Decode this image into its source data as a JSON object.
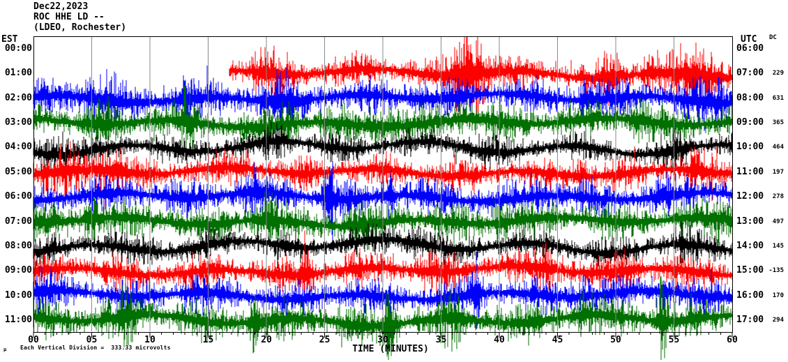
{
  "chart_data": {
    "type": "helicorder",
    "title": "Dec22,2023",
    "station": "ROC HHE LD --",
    "location": "(LDEO, Rochester)",
    "left_axis_label": "EST",
    "right_axis_label": "UTC",
    "dc_header": "DC",
    "xlabel": "TIME (MINUTES)",
    "x_range_minutes": [
      0,
      60
    ],
    "x_tick_step_minutes": 5,
    "x_tick_labels": [
      "00",
      "05",
      "10",
      "15",
      "20",
      "25",
      "30",
      "35",
      "40",
      "45",
      "50",
      "55",
      "60"
    ],
    "gridline_minutes": [
      5,
      10,
      15,
      20,
      25,
      30,
      35,
      40,
      45,
      50,
      55
    ],
    "footnote": "Each Vertical Division =  333.33 microvolts",
    "footnote_mark": "μ",
    "microvolts_per_division": 333.33,
    "colors": {
      "red": "#ff0000",
      "blue": "#0000ff",
      "green": "#007000",
      "black": "#000000",
      "grid": "#8a8a8a",
      "border": "#000000"
    },
    "random_seed": 122223,
    "rows": [
      {
        "est": "00:00",
        "utc": "06:00",
        "dc": "",
        "color": null,
        "has_data": false,
        "start_min": 0,
        "end_min": 0,
        "base_amp": 0,
        "wander": 0,
        "events": []
      },
      {
        "est": "01:00",
        "utc": "07:00",
        "dc": "229",
        "color": "red",
        "has_data": true,
        "start_min": 16.8,
        "end_min": 60,
        "base_amp": 15,
        "wander": 4,
        "events": [
          {
            "m": 20.5,
            "a": 12,
            "w": 1.5
          },
          {
            "m": 37.4,
            "a": 40,
            "w": 1.4
          },
          {
            "m": 49.5,
            "a": 16,
            "w": 0.8
          },
          {
            "m": 53,
            "a": 10,
            "w": 0.8
          },
          {
            "m": 57,
            "a": 16,
            "w": 2.2
          }
        ]
      },
      {
        "est": "02:00",
        "utc": "08:00",
        "dc": "631",
        "color": "blue",
        "has_data": true,
        "start_min": 0,
        "end_min": 60,
        "base_amp": 17,
        "wander": 4,
        "events": [
          {
            "m": 5.8,
            "a": 14,
            "w": 1.8
          },
          {
            "m": 13,
            "a": 9,
            "w": 0.8
          },
          {
            "m": 21,
            "a": 13,
            "w": 1.6
          },
          {
            "m": 33,
            "a": 7,
            "w": 1
          },
          {
            "m": 47.8,
            "a": 11,
            "w": 0.9
          },
          {
            "m": 58.5,
            "a": 11,
            "w": 1.5
          }
        ]
      },
      {
        "est": "03:00",
        "utc": "09:00",
        "dc": "365",
        "color": "green",
        "has_data": true,
        "start_min": 0,
        "end_min": 60,
        "base_amp": 17,
        "wander": 4,
        "events": [
          {
            "m": 6,
            "a": 9,
            "w": 1
          },
          {
            "m": 13.2,
            "a": 15,
            "w": 0.7
          },
          {
            "m": 22,
            "a": 9,
            "w": 1
          },
          {
            "m": 30,
            "a": 11,
            "w": 1.2
          },
          {
            "m": 37,
            "a": 9,
            "w": 0.8
          },
          {
            "m": 52,
            "a": 9,
            "w": 0.8
          }
        ]
      },
      {
        "est": "04:00",
        "utc": "10:00",
        "dc": "464",
        "color": "black",
        "has_data": true,
        "start_min": 0,
        "end_min": 60,
        "base_amp": 13,
        "wander": 6,
        "events": [
          {
            "m": 2,
            "a": 9,
            "w": 1.5
          },
          {
            "m": 21,
            "a": 7,
            "w": 1
          },
          {
            "m": 38,
            "a": 6,
            "w": 2
          },
          {
            "m": 55,
            "a": 7,
            "w": 1.2
          }
        ]
      },
      {
        "est": "05:00",
        "utc": "11:00",
        "dc": "197",
        "color": "red",
        "has_data": true,
        "start_min": 0,
        "end_min": 60,
        "base_amp": 15,
        "wander": 4,
        "events": [
          {
            "m": 3,
            "a": 13,
            "w": 1.2
          },
          {
            "m": 6.5,
            "a": 15,
            "w": 1.5
          },
          {
            "m": 18,
            "a": 7,
            "w": 1
          },
          {
            "m": 47,
            "a": 9,
            "w": 1
          },
          {
            "m": 57,
            "a": 9,
            "w": 1
          }
        ]
      },
      {
        "est": "06:00",
        "utc": "12:00",
        "dc": "278",
        "color": "blue",
        "has_data": true,
        "start_min": 0,
        "end_min": 60,
        "base_amp": 17,
        "wander": 4,
        "events": [
          {
            "m": 19,
            "a": 9,
            "w": 1.2
          },
          {
            "m": 25.6,
            "a": 28,
            "w": 0.5
          },
          {
            "m": 30.6,
            "a": 18,
            "w": 0.5
          },
          {
            "m": 44,
            "a": 7,
            "w": 1
          },
          {
            "m": 54,
            "a": 9,
            "w": 0.8
          }
        ]
      },
      {
        "est": "07:00",
        "utc": "13:00",
        "dc": "497",
        "color": "green",
        "has_data": true,
        "start_min": 0,
        "end_min": 60,
        "base_amp": 17,
        "wander": 4,
        "events": [
          {
            "m": 5,
            "a": 13,
            "w": 0.8
          },
          {
            "m": 20,
            "a": 13,
            "w": 0.9
          },
          {
            "m": 28,
            "a": 7,
            "w": 1
          },
          {
            "m": 40,
            "a": 9,
            "w": 0.9
          },
          {
            "m": 59,
            "a": 11,
            "w": 0.8
          }
        ]
      },
      {
        "est": "08:00",
        "utc": "14:00",
        "dc": "145",
        "color": "black",
        "has_data": true,
        "start_min": 0,
        "end_min": 60,
        "base_amp": 14,
        "wander": 6,
        "events": [
          {
            "m": 10,
            "a": 5,
            "w": 1
          },
          {
            "m": 33,
            "a": 7,
            "w": 1.2
          },
          {
            "m": 56,
            "a": 9,
            "w": 0.9
          }
        ]
      },
      {
        "est": "09:00",
        "utc": "15:00",
        "dc": "-135",
        "color": "red",
        "has_data": true,
        "start_min": 0,
        "end_min": 60,
        "base_amp": 16,
        "wander": 4,
        "events": [
          {
            "m": 23.4,
            "a": 26,
            "w": 0.5
          },
          {
            "m": 34,
            "a": 9,
            "w": 1
          },
          {
            "m": 44,
            "a": 11,
            "w": 1
          },
          {
            "m": 51,
            "a": 9,
            "w": 0.8
          }
        ]
      },
      {
        "est": "10:00",
        "utc": "16:00",
        "dc": "170",
        "color": "blue",
        "has_data": true,
        "start_min": 0,
        "end_min": 60,
        "base_amp": 16,
        "wander": 4,
        "events": [
          {
            "m": 0.7,
            "a": 11,
            "w": 0.9
          },
          {
            "m": 14,
            "a": 7,
            "w": 1
          },
          {
            "m": 38,
            "a": 24,
            "w": 0.5
          },
          {
            "m": 47.5,
            "a": 9,
            "w": 0.8
          },
          {
            "m": 54,
            "a": 13,
            "w": 0.7
          }
        ]
      },
      {
        "est": "11:00",
        "utc": "17:00",
        "dc": "294",
        "color": "green",
        "has_data": true,
        "start_min": 0,
        "end_min": 60,
        "base_amp": 18,
        "wander": 5,
        "events": [
          {
            "m": 8,
            "a": 9,
            "w": 1
          },
          {
            "m": 19,
            "a": 22,
            "w": 0.5
          },
          {
            "m": 30.6,
            "a": 26,
            "w": 0.5
          },
          {
            "m": 36,
            "a": 13,
            "w": 0.8
          },
          {
            "m": 47,
            "a": 9,
            "w": 0.8
          },
          {
            "m": 54,
            "a": 28,
            "w": 0.5
          }
        ]
      }
    ]
  }
}
